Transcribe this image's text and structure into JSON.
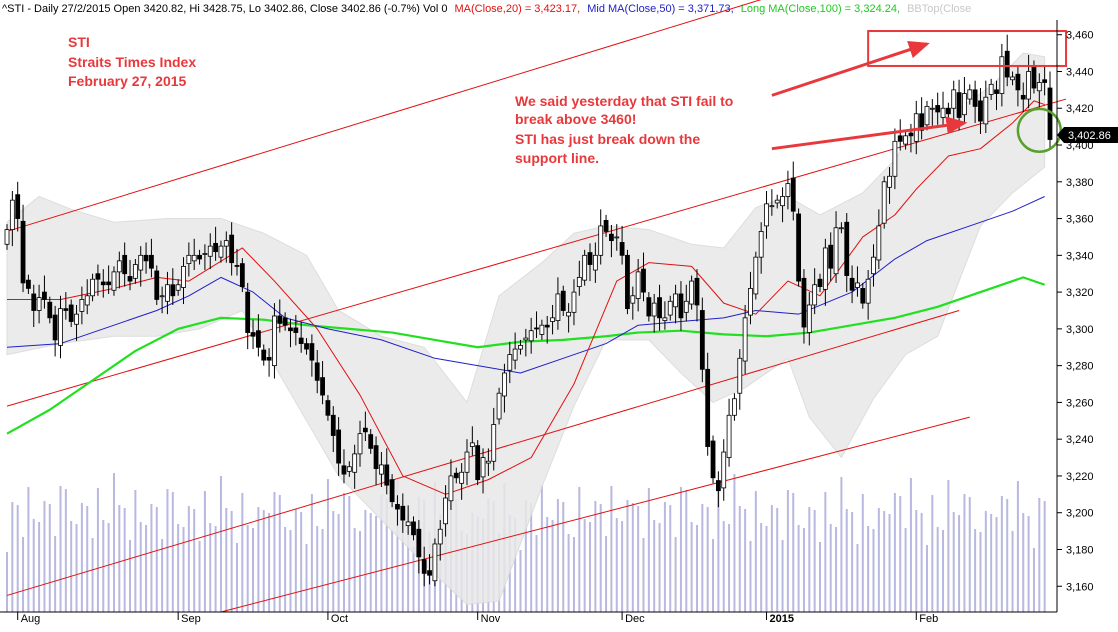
{
  "header": {
    "symbol_info": "^STI - Daily 27/2/2015 Open 3420.82, Hi 3428.75, Lo 3402.86, Close 3402.86 (-0.7%) Vol 0",
    "ma20_label": "MA(Close,20) = 3,423.17,",
    "ma50_label": "Mid MA(Close,50) = 3,371.73,",
    "ma100_label": "Long MA(Close,100) = 3,324.24,",
    "bb_label": "BBTop(Close"
  },
  "title_block": {
    "line1": "STI",
    "line2": "Straits Times Index",
    "line3": "February 27, 2015"
  },
  "annotation": {
    "line1": "We said yesterday that STI fail to",
    "line2": "break above 3460!",
    "line3": "STI has just break down the",
    "line4": "support line."
  },
  "last_price_tag": "3,402.86",
  "colors": {
    "ma20": "#e01010",
    "ma50": "#2020c8",
    "ma100": "#20e020",
    "trendline": "#e01010",
    "bb_band": "#e8e8e8",
    "volume": "#b8b8e0",
    "annotation": "#e8383b",
    "circle": "#5aa02c",
    "header_default": "#000000",
    "bb_label": "#c8c8c8"
  },
  "chart_data": {
    "type": "candlestick",
    "y_ticks": [
      "3,460",
      "3,440",
      "3,420",
      "3,400",
      "3,380",
      "3,360",
      "3,340",
      "3,320",
      "3,300",
      "3,280",
      "3,260",
      "3,240",
      "3,220",
      "3,200",
      "3,180",
      "3,160"
    ],
    "y_tick_values": [
      3460,
      3440,
      3420,
      3400,
      3380,
      3360,
      3340,
      3320,
      3300,
      3280,
      3260,
      3240,
      3220,
      3200,
      3180,
      3160
    ],
    "ylim": [
      3146,
      3468
    ],
    "x_labels": [
      "Aug",
      "Sep",
      "Oct",
      "Nov",
      "Dec",
      "2015",
      "Feb"
    ],
    "x_label_bar_index": [
      2,
      32,
      60,
      88,
      115,
      142,
      170
    ],
    "n_bars": 196,
    "grid": false,
    "candles_close": [
      3354,
      3370,
      3360,
      3325,
      3322,
      3310,
      3317,
      3316,
      3306,
      3294,
      3311,
      3310,
      3304,
      3308,
      3316,
      3318,
      3327,
      3327,
      3324,
      3324,
      3331,
      3337,
      3330,
      3326,
      3335,
      3340,
      3337,
      3333,
      3316,
      3318,
      3324,
      3318,
      3324,
      3334,
      3340,
      3340,
      3338,
      3341,
      3345,
      3342,
      3345,
      3348,
      3336,
      3334,
      3323,
      3298,
      3296,
      3290,
      3283,
      3283,
      3307,
      3303,
      3302,
      3299,
      3298,
      3292,
      3289,
      3283,
      3272,
      3264,
      3253,
      3242,
      3227,
      3221,
      3225,
      3232,
      3243,
      3244,
      3235,
      3224,
      3226,
      3215,
      3206,
      3202,
      3196,
      3195,
      3188,
      3176,
      3167,
      3166,
      3183,
      3191,
      3208,
      3220,
      3219,
      3222,
      3233,
      3238,
      3218,
      3230,
      3228,
      3248,
      3265,
      3276,
      3286,
      3289,
      3291,
      3295,
      3299,
      3300,
      3302,
      3301,
      3306,
      3319,
      3310,
      3309,
      3320,
      3328,
      3340,
      3335,
      3340,
      3356,
      3353,
      3348,
      3350,
      3340,
      3311,
      3318,
      3331,
      3320,
      3307,
      3314,
      3306,
      3306,
      3315,
      3319,
      3306,
      3315,
      3326,
      3313,
      3278,
      3236,
      3219,
      3212,
      3233,
      3253,
      3262,
      3284,
      3306,
      3322,
      3339,
      3353,
      3368,
      3367,
      3370,
      3372,
      3379,
      3364,
      3326,
      3301,
      3313,
      3324,
      3323,
      3344,
      3333,
      3355,
      3355,
      3329,
      3321,
      3325,
      3314,
      3327,
      3339,
      3356,
      3380,
      3383,
      3402,
      3402,
      3405,
      3405,
      3417,
      3408,
      3421,
      3420,
      3418,
      3420,
      3417,
      3430,
      3415,
      3428,
      3430,
      3421,
      3413,
      3426,
      3433,
      3428,
      3448,
      3437,
      3437,
      3430,
      3425,
      3440,
      3431,
      3434,
      3434,
      3403
    ],
    "ma20_points": [
      [
        0,
        3316
      ],
      [
        10,
        3316
      ],
      [
        20,
        3322
      ],
      [
        28,
        3328
      ],
      [
        34,
        3326
      ],
      [
        44,
        3344
      ],
      [
        50,
        3326
      ],
      [
        58,
        3300
      ],
      [
        66,
        3264
      ],
      [
        74,
        3220
      ],
      [
        82,
        3210
      ],
      [
        90,
        3218
      ],
      [
        98,
        3230
      ],
      [
        106,
        3270
      ],
      [
        114,
        3326
      ],
      [
        120,
        3336
      ],
      [
        128,
        3334
      ],
      [
        134,
        3314
      ],
      [
        140,
        3308
      ],
      [
        146,
        3326
      ],
      [
        152,
        3318
      ],
      [
        160,
        3350
      ],
      [
        166,
        3362
      ],
      [
        170,
        3376
      ],
      [
        176,
        3394
      ],
      [
        182,
        3398
      ],
      [
        188,
        3412
      ],
      [
        192,
        3424
      ],
      [
        194,
        3422
      ]
    ],
    "ma50_points": [
      [
        0,
        3290
      ],
      [
        10,
        3292
      ],
      [
        20,
        3302
      ],
      [
        28,
        3310
      ],
      [
        34,
        3318
      ],
      [
        40,
        3328
      ],
      [
        46,
        3320
      ],
      [
        52,
        3306
      ],
      [
        60,
        3300
      ],
      [
        70,
        3294
      ],
      [
        80,
        3284
      ],
      [
        88,
        3280
      ],
      [
        96,
        3276
      ],
      [
        104,
        3284
      ],
      [
        112,
        3292
      ],
      [
        118,
        3302
      ],
      [
        126,
        3304
      ],
      [
        134,
        3306
      ],
      [
        140,
        3310
      ],
      [
        148,
        3308
      ],
      [
        158,
        3320
      ],
      [
        166,
        3338
      ],
      [
        172,
        3348
      ],
      [
        180,
        3356
      ],
      [
        188,
        3364
      ],
      [
        194,
        3372
      ]
    ],
    "ma100_points": [
      [
        0,
        3243
      ],
      [
        8,
        3256
      ],
      [
        16,
        3272
      ],
      [
        24,
        3288
      ],
      [
        32,
        3300
      ],
      [
        40,
        3306
      ],
      [
        48,
        3305
      ],
      [
        56,
        3302
      ],
      [
        64,
        3300
      ],
      [
        72,
        3298
      ],
      [
        80,
        3294
      ],
      [
        88,
        3290
      ],
      [
        96,
        3293
      ],
      [
        104,
        3294
      ],
      [
        112,
        3296
      ],
      [
        118,
        3298
      ],
      [
        126,
        3299
      ],
      [
        134,
        3297
      ],
      [
        142,
        3296
      ],
      [
        150,
        3298
      ],
      [
        158,
        3302
      ],
      [
        166,
        3306
      ],
      [
        174,
        3312
      ],
      [
        182,
        3320
      ],
      [
        190,
        3328
      ],
      [
        194,
        3324
      ]
    ],
    "bb_upper_points": [
      [
        0,
        3358
      ],
      [
        6,
        3372
      ],
      [
        12,
        3365
      ],
      [
        20,
        3358
      ],
      [
        30,
        3360
      ],
      [
        40,
        3360
      ],
      [
        48,
        3352
      ],
      [
        56,
        3340
      ],
      [
        62,
        3310
      ],
      [
        70,
        3296
      ],
      [
        78,
        3290
      ],
      [
        86,
        3260
      ],
      [
        92,
        3318
      ],
      [
        100,
        3336
      ],
      [
        106,
        3352
      ],
      [
        112,
        3356
      ],
      [
        120,
        3354
      ],
      [
        128,
        3346
      ],
      [
        134,
        3344
      ],
      [
        140,
        3366
      ],
      [
        146,
        3372
      ],
      [
        152,
        3362
      ],
      [
        160,
        3374
      ],
      [
        166,
        3392
      ],
      [
        172,
        3420
      ],
      [
        178,
        3420
      ],
      [
        184,
        3432
      ],
      [
        190,
        3450
      ],
      [
        194,
        3448
      ]
    ],
    "bb_lower_points": [
      [
        0,
        3286
      ],
      [
        10,
        3292
      ],
      [
        20,
        3296
      ],
      [
        28,
        3296
      ],
      [
        36,
        3300
      ],
      [
        44,
        3310
      ],
      [
        50,
        3280
      ],
      [
        56,
        3250
      ],
      [
        62,
        3220
      ],
      [
        70,
        3196
      ],
      [
        78,
        3172
      ],
      [
        86,
        3150
      ],
      [
        92,
        3152
      ],
      [
        100,
        3214
      ],
      [
        106,
        3258
      ],
      [
        112,
        3294
      ],
      [
        120,
        3294
      ],
      [
        126,
        3276
      ],
      [
        132,
        3260
      ],
      [
        138,
        3268
      ],
      [
        146,
        3284
      ],
      [
        150,
        3252
      ],
      [
        156,
        3230
      ],
      [
        162,
        3262
      ],
      [
        168,
        3286
      ],
      [
        174,
        3296
      ],
      [
        182,
        3356
      ],
      [
        188,
        3374
      ],
      [
        194,
        3388
      ]
    ],
    "trendlines": [
      {
        "name": "upper channel",
        "from": [
          0,
          3353
        ],
        "to": [
          142,
          3480
        ]
      },
      {
        "name": "support line",
        "from": [
          0,
          3258
        ],
        "to": [
          198,
          3425
        ]
      },
      {
        "name": "mid channel",
        "from": [
          0,
          3155
        ],
        "to": [
          178,
          3310
        ]
      },
      {
        "name": "lower channel",
        "from": [
          40,
          3146
        ],
        "to": [
          180,
          3252
        ]
      }
    ],
    "resistance_box": {
      "from": [
        161,
        3443
      ],
      "to": [
        198,
        3462
      ]
    },
    "arrows": [
      {
        "from": [
          143,
          3427
        ],
        "to": [
          172,
          3455
        ]
      },
      {
        "from": [
          143,
          3398
        ],
        "to": [
          179,
          3412
        ]
      }
    ],
    "circle": {
      "center": [
        193,
        3408
      ],
      "radius_bars": 4
    }
  }
}
